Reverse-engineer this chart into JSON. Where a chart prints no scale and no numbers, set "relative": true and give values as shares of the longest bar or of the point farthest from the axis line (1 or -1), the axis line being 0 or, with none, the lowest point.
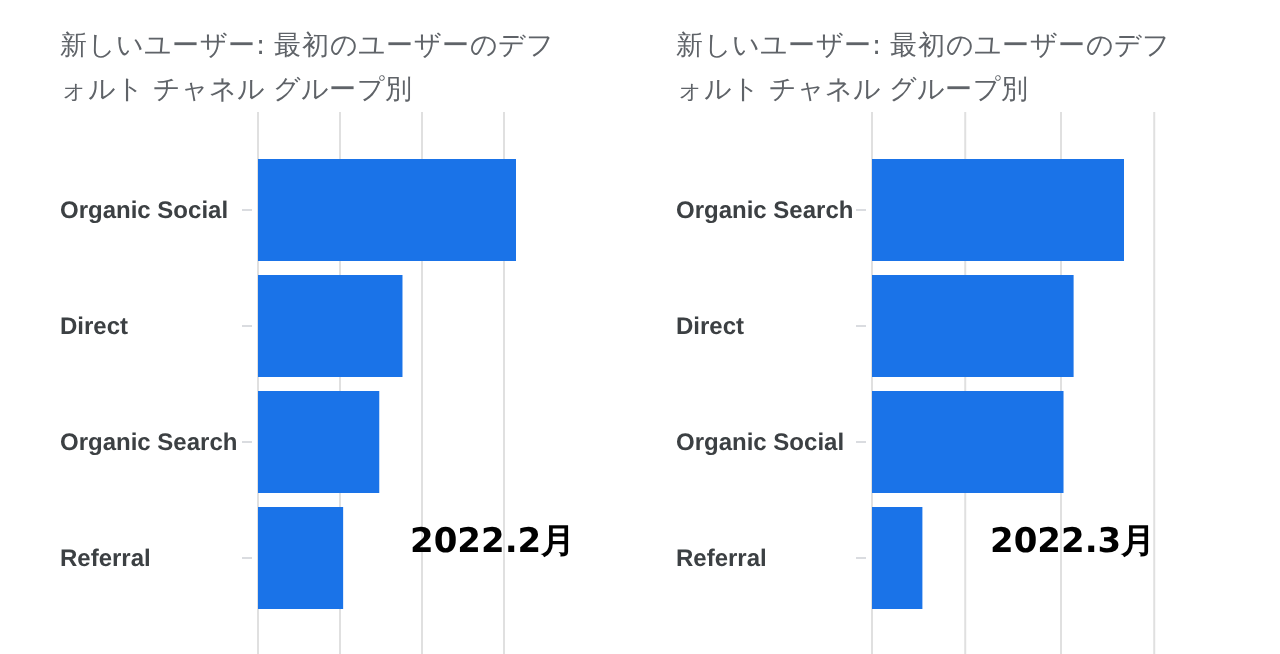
{
  "chart_data": [
    {
      "type": "bar",
      "orientation": "horizontal",
      "relative": true,
      "title": "新しいユーザー: 最初のユーザーのデフォルト チャネル グループ別",
      "categories": [
        "Organic Social",
        "Direct",
        "Organic Search",
        "Referral"
      ],
      "values": [
        1,
        0.56,
        0.47,
        0.33
      ],
      "color": "#1a73e8",
      "grid": "x",
      "annotations": [
        "2022.2月"
      ]
    },
    {
      "type": "bar",
      "orientation": "horizontal",
      "relative": true,
      "title": "新しいユーザー: 最初のユーザーのデフォルト チャネル グループ別",
      "categories": [
        "Organic Search",
        "Direct",
        "Organic Social",
        "Referral"
      ],
      "values": [
        1,
        0.8,
        0.76,
        0.2
      ],
      "color": "#1a73e8",
      "ref_lines": [
        {
          "axis": "x",
          "value": 0.37,
          "color": "#e0e0e0"
        },
        {
          "axis": "x",
          "value": 0.75,
          "color": "#e0e0e0"
        },
        {
          "axis": "x",
          "value": 1.12,
          "color": "#e0e0e0"
        }
      ],
      "annotations": [
        "2022.3月"
      ]
    }
  ]
}
